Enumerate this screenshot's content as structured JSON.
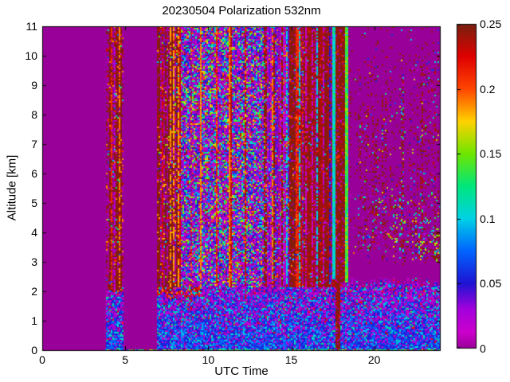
{
  "chart_data": {
    "type": "heatmap",
    "title": "20230504 Polarization 532nm",
    "xlabel": "UTC Time",
    "ylabel": "Altitude [km]",
    "xlim": [
      0,
      24
    ],
    "ylim": [
      0,
      11
    ],
    "clim": [
      0,
      0.25
    ],
    "grid": false,
    "xticks": [
      {
        "v": 0,
        "label": "0"
      },
      {
        "v": 5,
        "label": "5"
      },
      {
        "v": 10,
        "label": "10"
      },
      {
        "v": 15,
        "label": "15"
      },
      {
        "v": 20,
        "label": "20"
      }
    ],
    "yticks": [
      {
        "v": 0,
        "label": "0"
      },
      {
        "v": 1,
        "label": "1"
      },
      {
        "v": 2,
        "label": "2"
      },
      {
        "v": 3,
        "label": "3"
      },
      {
        "v": 4,
        "label": "4"
      },
      {
        "v": 5,
        "label": "5"
      },
      {
        "v": 6,
        "label": "6"
      },
      {
        "v": 7,
        "label": "7"
      },
      {
        "v": 8,
        "label": "8"
      },
      {
        "v": 9,
        "label": "9"
      },
      {
        "v": 10,
        "label": "10"
      },
      {
        "v": 11,
        "label": "11"
      }
    ],
    "colorbar": {
      "position": "right",
      "ticks": [
        {
          "v": 0,
          "label": "0"
        },
        {
          "v": 0.05,
          "label": "0.05"
        },
        {
          "v": 0.1,
          "label": "0.1"
        },
        {
          "v": 0.15,
          "label": "0.15"
        },
        {
          "v": 0.2,
          "label": "0.2"
        },
        {
          "v": 0.25,
          "label": "0.25"
        }
      ]
    },
    "background_value": 0,
    "background_color": "#990099",
    "colormap": [
      [
        0.0,
        "#990099"
      ],
      [
        0.012,
        "#CC00CC"
      ],
      [
        0.03,
        "#A400DC"
      ],
      [
        0.05,
        "#1E14D2"
      ],
      [
        0.075,
        "#0064FF"
      ],
      [
        0.1,
        "#00D2E6"
      ],
      [
        0.125,
        "#00E67D"
      ],
      [
        0.15,
        "#6EE600"
      ],
      [
        0.175,
        "#FFD200"
      ],
      [
        0.2,
        "#FF4600"
      ],
      [
        0.225,
        "#E00000"
      ],
      [
        0.25,
        "#78200F"
      ]
    ],
    "regions": [
      {
        "name": "early-band-high",
        "t": [
          3.82,
          4.92
        ],
        "alt": [
          2.02,
          11
        ],
        "mode": "colstripes",
        "palette": [
          [
            0.246,
            44
          ],
          [
            0.232,
            14
          ],
          [
            0.19,
            8
          ],
          [
            0,
            19
          ],
          [
            0.025,
            5
          ],
          [
            0.21,
            4
          ],
          [
            0.07,
            2
          ],
          [
            0.12,
            2
          ],
          [
            0.1,
            2
          ]
        ]
      },
      {
        "name": "early-band-low",
        "t": [
          3.82,
          4.92
        ],
        "alt": [
          0,
          2.02
        ],
        "mode": "speckle2",
        "opts": {
          "topJitter": 0.06
        },
        "palette": [
          [
            0.005,
            16
          ],
          [
            0.015,
            20
          ],
          [
            0.03,
            16
          ],
          [
            0.05,
            12
          ],
          [
            0.065,
            8
          ],
          [
            0,
            12
          ],
          [
            0.09,
            6
          ],
          [
            0.11,
            4
          ],
          [
            0.13,
            3
          ],
          [
            0.22,
            3
          ]
        ],
        "palette2": [
          [
            0.055,
            22
          ],
          [
            0.07,
            22
          ],
          [
            0.08,
            12
          ],
          [
            0.045,
            12
          ],
          [
            0.09,
            8
          ],
          [
            0.03,
            8
          ],
          [
            0.1,
            6
          ],
          [
            0.12,
            4
          ],
          [
            0.02,
            6
          ]
        ]
      },
      {
        "name": "boundary-layer-band",
        "t": [
          6.87,
          24
        ],
        "alt": [
          0,
          2.32
        ],
        "mode": "speckle2",
        "opts": {
          "topJitter": 0.18
        },
        "palette": [
          [
            0.005,
            16
          ],
          [
            0.015,
            20
          ],
          [
            0.03,
            16
          ],
          [
            0.05,
            12
          ],
          [
            0.065,
            8
          ],
          [
            0,
            12
          ],
          [
            0.09,
            6
          ],
          [
            0.11,
            4
          ],
          [
            0.13,
            3
          ],
          [
            0.22,
            3
          ]
        ],
        "palette2": [
          [
            0.055,
            22
          ],
          [
            0.07,
            22
          ],
          [
            0.08,
            12
          ],
          [
            0.045,
            12
          ],
          [
            0.09,
            8
          ],
          [
            0.03,
            8
          ],
          [
            0.1,
            6
          ],
          [
            0.12,
            4
          ],
          [
            0.02,
            6
          ]
        ]
      },
      {
        "name": "low-top-red-mix",
        "t": [
          6.87,
          9.6
        ],
        "alt": [
          1.8,
          2.5
        ],
        "mode": "speckle",
        "opts": {
          "topJitter": 0.12,
          "botJitter": 0.15
        },
        "palette": [
          [
            0.22,
            22
          ],
          [
            0.245,
            14
          ],
          [
            0.19,
            10
          ],
          [
            0,
            16
          ],
          [
            0.02,
            14
          ],
          [
            0.05,
            10
          ],
          [
            0.08,
            5
          ],
          [
            0.1,
            5
          ],
          [
            0.13,
            4
          ]
        ]
      },
      {
        "name": "red-stripes-7-8",
        "t": [
          6.87,
          8.35
        ],
        "alt": [
          2.15,
          11
        ],
        "mode": "colstripes",
        "palette": [
          [
            0.246,
            40
          ],
          [
            0.225,
            12
          ],
          [
            0.185,
            10
          ],
          [
            0,
            20
          ],
          [
            0.02,
            8
          ],
          [
            0.05,
            4
          ],
          [
            0.1,
            3
          ],
          [
            0.15,
            3
          ]
        ]
      },
      {
        "name": "rainbow-noise",
        "t": [
          8.35,
          13.35
        ],
        "alt": [
          2.15,
          11
        ],
        "mode": "speckle",
        "palette": [
          [
            0,
            13
          ],
          [
            0.013,
            21
          ],
          [
            0.03,
            15
          ],
          [
            0.05,
            12
          ],
          [
            0.075,
            8
          ],
          [
            0.1,
            8
          ],
          [
            0.125,
            6
          ],
          [
            0.15,
            6
          ],
          [
            0.17,
            4
          ],
          [
            0.2,
            4
          ],
          [
            0.235,
            3
          ]
        ]
      },
      {
        "name": "orange-vline-1",
        "t": [
          8.95,
          9.07
        ],
        "alt": [
          2.15,
          11
        ],
        "mode": "colstripes",
        "palette": [
          [
            0.19,
            46
          ],
          [
            0.215,
            18
          ],
          [
            0.17,
            12
          ],
          [
            0,
            10
          ],
          [
            0.235,
            14
          ]
        ]
      },
      {
        "name": "orange-vline-2",
        "t": [
          9.5,
          9.62
        ],
        "alt": [
          2.15,
          11
        ],
        "mode": "colstripes",
        "palette": [
          [
            0.19,
            46
          ],
          [
            0.215,
            18
          ],
          [
            0.17,
            12
          ],
          [
            0,
            10
          ],
          [
            0.235,
            14
          ]
        ]
      },
      {
        "name": "orange-vline-3",
        "t": [
          10.44,
          10.56
        ],
        "alt": [
          2.15,
          11
        ],
        "mode": "colstripes",
        "palette": [
          [
            0.19,
            46
          ],
          [
            0.215,
            18
          ],
          [
            0.17,
            12
          ],
          [
            0,
            10
          ],
          [
            0.235,
            14
          ]
        ]
      },
      {
        "name": "orange-vline-4",
        "t": [
          11.26,
          11.38
        ],
        "alt": [
          2.15,
          11
        ],
        "mode": "colstripes",
        "palette": [
          [
            0.19,
            46
          ],
          [
            0.215,
            18
          ],
          [
            0.17,
            12
          ],
          [
            0,
            10
          ],
          [
            0.235,
            14
          ]
        ]
      },
      {
        "name": "orange-vline-5",
        "t": [
          12.16,
          12.28
        ],
        "alt": [
          2.15,
          11
        ],
        "mode": "colstripes",
        "palette": [
          [
            0.19,
            46
          ],
          [
            0.215,
            18
          ],
          [
            0.17,
            12
          ],
          [
            0,
            10
          ],
          [
            0.235,
            14
          ]
        ]
      },
      {
        "name": "mixed-stripes-13-15",
        "t": [
          13.35,
          14.85
        ],
        "alt": [
          2.15,
          11
        ],
        "mode": "colstripes",
        "palette": [
          [
            0,
            16
          ],
          [
            0.02,
            15
          ],
          [
            0.04,
            9
          ],
          [
            0.19,
            14
          ],
          [
            0.22,
            12
          ],
          [
            0.246,
            10
          ],
          [
            0.1,
            6
          ],
          [
            0.075,
            6
          ],
          [
            0.125,
            4
          ],
          [
            0.15,
            4
          ],
          [
            0.105,
            4
          ]
        ]
      },
      {
        "name": "red-stripes-15-16",
        "t": [
          14.85,
          15.8
        ],
        "alt": [
          2.15,
          11
        ],
        "mode": "colstripes",
        "palette": [
          [
            0.232,
            28
          ],
          [
            0.246,
            24
          ],
          [
            0.21,
            12
          ],
          [
            0,
            15
          ],
          [
            0.02,
            8
          ],
          [
            0.19,
            5
          ],
          [
            0.05,
            4
          ],
          [
            0.1,
            4
          ]
        ]
      },
      {
        "name": "dark-red-16-17",
        "t": [
          15.8,
          17.64
        ],
        "alt": [
          2.15,
          11
        ],
        "mode": "colstripes",
        "palette": [
          [
            0.246,
            48
          ],
          [
            0.236,
            22
          ],
          [
            0,
            15
          ],
          [
            0.015,
            8
          ],
          [
            0.21,
            3
          ],
          [
            0.05,
            2
          ],
          [
            0.1,
            2
          ]
        ]
      },
      {
        "name": "cyan-line-17.5",
        "t": [
          17.5,
          17.64
        ],
        "alt": [
          2.4,
          11
        ],
        "mode": "speckle",
        "palette": [
          [
            0.103,
            55
          ],
          [
            0.115,
            25
          ],
          [
            0.13,
            12
          ],
          [
            0.09,
            8
          ]
        ]
      },
      {
        "name": "dark-band-low",
        "t": [
          17.64,
          17.97
        ],
        "alt": [
          0,
          2.3
        ],
        "mode": "speckle",
        "palette": [
          [
            0.246,
            62
          ],
          [
            0.236,
            18
          ],
          [
            0,
            10
          ],
          [
            0.02,
            6
          ],
          [
            0.21,
            4
          ]
        ]
      },
      {
        "name": "dark-band-high",
        "t": [
          17.64,
          18.24
        ],
        "alt": [
          2.3,
          11
        ],
        "mode": "speckle",
        "palette": [
          [
            0.246,
            62
          ],
          [
            0.236,
            18
          ],
          [
            0,
            10
          ],
          [
            0.02,
            6
          ],
          [
            0.21,
            4
          ]
        ]
      },
      {
        "name": "green-line-18.3",
        "t": [
          18.24,
          18.4
        ],
        "alt": [
          2.3,
          11
        ],
        "mode": "speckle",
        "palette": [
          [
            0.135,
            40
          ],
          [
            0.148,
            25
          ],
          [
            0.162,
            15
          ],
          [
            0.12,
            14
          ],
          [
            0.105,
            6
          ]
        ]
      },
      {
        "name": "evening-fall-streaks",
        "t": [
          18.4,
          24
        ],
        "alt": [
          2.75,
          10.45
        ],
        "mode": "streaks",
        "opts": {
          "p0": 0.34,
          "rampB": 0.9,
          "rampT": 2.2,
          "tRamp": [
            0.3,
            1.0
          ]
        },
        "palette": [
          [
            0.246,
            62
          ],
          [
            0.232,
            16
          ],
          [
            0.02,
            6
          ],
          [
            0.1,
            4
          ],
          [
            0.128,
            4
          ],
          [
            0.165,
            3
          ],
          [
            0.05,
            3
          ],
          [
            0.075,
            2
          ]
        ]
      },
      {
        "name": "streak-cluster-19-20",
        "t": [
          19.0,
          20.6
        ],
        "alt": [
          3.4,
          8.6
        ],
        "mode": "streaks",
        "opts": {
          "p0": 0.25,
          "rampB": 0.6,
          "rampT": 1.5,
          "tRamp": [
            0.8,
            1.0
          ]
        },
        "palette": [
          [
            0.246,
            62
          ],
          [
            0.232,
            16
          ],
          [
            0.02,
            6
          ],
          [
            0.1,
            4
          ],
          [
            0.128,
            4
          ],
          [
            0.165,
            3
          ],
          [
            0.05,
            3
          ],
          [
            0.075,
            2
          ]
        ]
      },
      {
        "name": "colorful-dots-low-evening",
        "t": [
          18.7,
          24
        ],
        "alt": [
          3.1,
          5.6
        ],
        "mode": "streaks",
        "opts": {
          "p0": 0.1,
          "rampB": 0.3,
          "rampT": 0.8,
          "tRamp": [
            0.4,
            1.0
          ]
        },
        "palette": [
          [
            0.1,
            20
          ],
          [
            0.12,
            20
          ],
          [
            0.14,
            15
          ],
          [
            0.165,
            12
          ],
          [
            0.08,
            10
          ],
          [
            0.19,
            8
          ],
          [
            0.05,
            8
          ],
          [
            0.03,
            7
          ]
        ]
      },
      {
        "name": "descending-wedge",
        "t": [
          20.9,
          24
        ],
        "alt": [
          2.95,
          6.1
        ],
        "mode": "streaks",
        "opts": {
          "p0": 0.5,
          "rampB": 0.2,
          "rampT": 1.2,
          "tRamp": [
            0.5,
            1.0
          ],
          "topSlope": -0.6
        },
        "palette": [
          [
            0.246,
            40
          ],
          [
            0.225,
            10
          ],
          [
            0.15,
            12
          ],
          [
            0.17,
            10
          ],
          [
            0.125,
            8
          ],
          [
            0.1,
            8
          ],
          [
            0.05,
            6
          ],
          [
            0.035,
            6
          ]
        ]
      },
      {
        "name": "high-sparse-dots",
        "t": [
          18.4,
          24
        ],
        "alt": [
          9.0,
          11
        ],
        "mode": "streaks",
        "opts": {
          "p0": 0.06,
          "rampB": 0.01,
          "rampT": 0.01,
          "tRamp": [
            0.3,
            1.0
          ]
        },
        "palette": [
          [
            0.246,
            70
          ],
          [
            0.06,
            15
          ],
          [
            0.1,
            15
          ]
        ]
      },
      {
        "name": "ground-return-line",
        "t": [
          3.7,
          24
        ],
        "alt": [
          0,
          0.07
        ],
        "mode": "speckle",
        "palette": [
          [
            0.13,
            30
          ],
          [
            0.118,
            14
          ],
          [
            0.246,
            18
          ],
          [
            0.21,
            8
          ],
          [
            0.05,
            8
          ],
          [
            0.08,
            6
          ],
          [
            0.17,
            10
          ],
          [
            0,
            6
          ]
        ]
      }
    ]
  }
}
